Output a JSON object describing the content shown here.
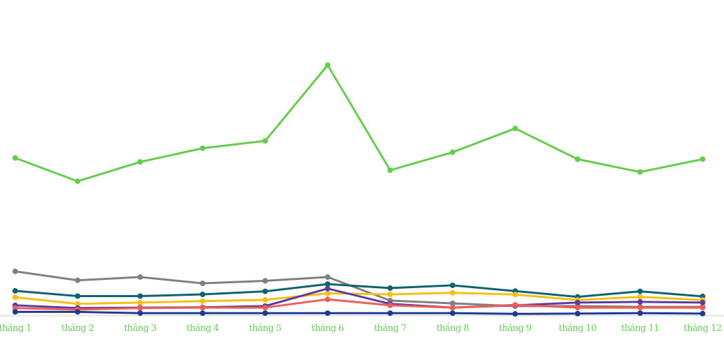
{
  "chart_data": {
    "type": "line",
    "title": "",
    "xlabel": "",
    "ylabel": "",
    "grid": false,
    "legend": "none",
    "ylim": [
      0,
      100
    ],
    "categories": [
      "tháng 1",
      "tháng 2",
      "tháng 3",
      "tháng 4",
      "tháng 5",
      "tháng 6",
      "tháng 7",
      "tháng 8",
      "tháng 9",
      "tháng 10",
      "tháng 11",
      "tháng 12"
    ],
    "tick_label_color": "#66cc55",
    "axis_color": "#cccccc",
    "series": [
      {
        "color": "#66cc4d",
        "values": [
          62.5,
          53.2,
          60.9,
          66.4,
          69.3,
          99.6,
          57.6,
          64.8,
          74.3,
          62.0,
          56.9,
          62.0
        ]
      },
      {
        "color": "#808080",
        "values": [
          17.2,
          13.6,
          14.9,
          12.4,
          13.4,
          14.9,
          5.5,
          4.4,
          3.3,
          3.3,
          3.0,
          3.0
        ]
      },
      {
        "color": "#0d6470",
        "values": [
          9.4,
          7.3,
          7.3,
          8.0,
          9.2,
          12.1,
          10.5,
          11.6,
          9.3,
          7.0,
          9.2,
          7.2
        ]
      },
      {
        "color": "#f5c015",
        "values": [
          6.8,
          4.2,
          4.7,
          5.3,
          5.8,
          8.4,
          8.0,
          8.6,
          7.9,
          5.7,
          7.0,
          5.7
        ]
      },
      {
        "color": "#5a3d9e",
        "values": [
          3.6,
          2.5,
          2.7,
          2.8,
          3.3,
          10.3,
          4.2,
          2.7,
          3.6,
          4.7,
          5.0,
          4.7
        ]
      },
      {
        "color": "#ee5c5c",
        "values": [
          2.5,
          1.9,
          2.5,
          2.7,
          2.7,
          6.0,
          3.6,
          2.7,
          3.8,
          2.7,
          2.7,
          2.7
        ]
      },
      {
        "color": "#1f3a93",
        "values": [
          1.0,
          1.0,
          0.5,
          0.5,
          0.5,
          0.5,
          0.5,
          0.5,
          0.2,
          0.3,
          0.5,
          0.3
        ]
      }
    ]
  }
}
